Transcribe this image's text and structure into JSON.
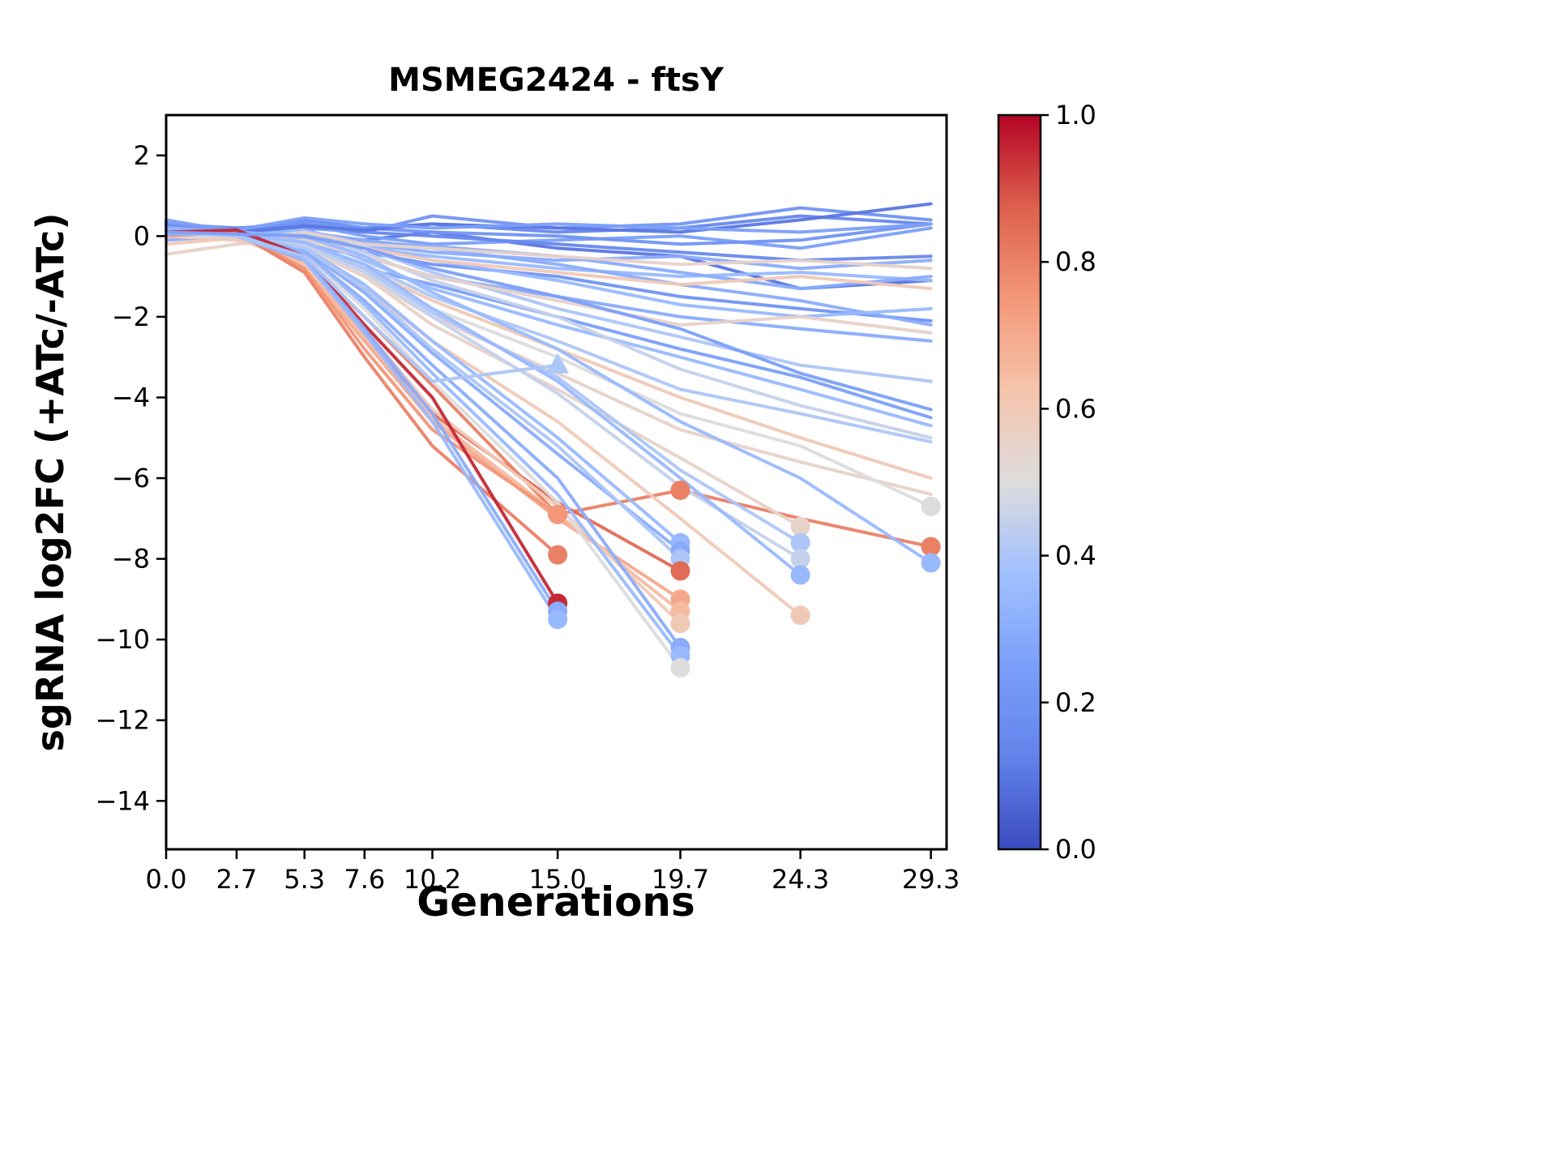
{
  "chart_data": {
    "type": "line",
    "title": "MSMEG2424 - ftsY",
    "xlabel": "Generations",
    "ylabel": "sgRNA log2FC (+ATc/-ATc)",
    "xlim": [
      0,
      29.9
    ],
    "ylim": [
      -15.2,
      3.0
    ],
    "x": [
      0.0,
      2.7,
      5.3,
      7.6,
      10.2,
      15.0,
      19.7,
      24.3,
      29.3
    ],
    "x_tick_labels": [
      "0.0",
      "2.7",
      "5.3",
      "7.6",
      "10.2",
      "15.0",
      "19.7",
      "24.3",
      "29.3"
    ],
    "y_ticks": [
      2,
      0,
      -2,
      -4,
      -6,
      -8,
      -10,
      -12,
      -14
    ],
    "y_tick_labels": [
      "2",
      "0",
      "−2",
      "−4",
      "−6",
      "−8",
      "−10",
      "−12",
      "−14"
    ],
    "colorbar": {
      "ticks": [
        0.0,
        0.2,
        0.4,
        0.6,
        0.8,
        1.0
      ],
      "tick_labels": [
        "0.0",
        "0.2",
        "0.4",
        "0.6",
        "0.8",
        "1.0"
      ]
    },
    "colormap_anchors": [
      [
        0.0,
        "#3b4cc0"
      ],
      [
        0.125,
        "#6282ea"
      ],
      [
        0.25,
        "#7b9ff9"
      ],
      [
        0.375,
        "#a1c0ff"
      ],
      [
        0.5,
        "#dddcdc"
      ],
      [
        0.625,
        "#f5c4ac"
      ],
      [
        0.75,
        "#f39778"
      ],
      [
        0.875,
        "#dd604d"
      ],
      [
        1.0,
        "#b40426"
      ]
    ],
    "series": [
      {
        "c": 0.15,
        "y": [
          0.3,
          0.1,
          0.4,
          0.2,
          0.3,
          0.1,
          0.2,
          0.5,
          0.3
        ]
      },
      {
        "c": 0.2,
        "y": [
          0.2,
          0.0,
          0.2,
          0.1,
          0.5,
          0.2,
          0.3,
          0.7,
          0.4
        ]
      },
      {
        "c": 0.1,
        "y": [
          0.1,
          0.2,
          0.0,
          -0.1,
          0.1,
          -0.3,
          -0.5,
          -1.3,
          -1.1
        ]
      },
      {
        "c": 0.25,
        "y": [
          0.4,
          0.1,
          0.3,
          0.0,
          -0.2,
          -0.1,
          0.0,
          -0.3,
          0.2
        ]
      },
      {
        "c": 0.3,
        "y": [
          0.2,
          -0.1,
          0.1,
          -0.2,
          -0.4,
          -0.6,
          -0.5,
          -0.8,
          -0.6
        ]
      },
      {
        "c": 0.35,
        "y": [
          0.0,
          0.1,
          -0.1,
          -0.3,
          -0.5,
          -0.8,
          -1.0,
          -0.9,
          -1.1
        ]
      },
      {
        "c": 0.2,
        "y": [
          0.1,
          0.0,
          0.2,
          -0.4,
          -0.7,
          -1.0,
          -1.5,
          -1.8,
          -2.1
        ]
      },
      {
        "c": 0.3,
        "y": [
          -0.1,
          0.0,
          -0.2,
          -0.5,
          -1.0,
          -1.5,
          -2.0,
          -2.3,
          -2.6
        ]
      },
      {
        "c": 0.25,
        "y": [
          0.0,
          0.05,
          -0.3,
          -0.8,
          -1.2,
          -2.0,
          -2.8,
          -3.5,
          -4.5
        ]
      },
      {
        "c": 0.35,
        "y": [
          0.2,
          0.1,
          0.0,
          -0.6,
          -1.3,
          -2.2,
          -3.0,
          -3.8,
          -4.7
        ]
      },
      {
        "c": 0.4,
        "y": [
          0.1,
          0.0,
          -0.2,
          -0.7,
          -1.5,
          -2.6,
          -3.8,
          -4.4,
          -5.1
        ]
      },
      {
        "c": 0.15,
        "y": [
          0.3,
          0.2,
          0.3,
          0.1,
          0.0,
          -0.2,
          -0.4,
          -0.6,
          -0.5
        ]
      },
      {
        "c": 0.3,
        "y": [
          0.15,
          0.05,
          0.1,
          -0.1,
          -0.3,
          -0.7,
          -1.2,
          -1.6,
          -2.2
        ]
      },
      {
        "c": 0.4,
        "y": [
          0.0,
          -0.1,
          0.05,
          -0.3,
          -0.9,
          -1.8,
          -2.5,
          -3.2,
          -3.6
        ]
      },
      {
        "c": 0.2,
        "y": [
          0.25,
          0.1,
          0.35,
          0.2,
          0.1,
          0.0,
          -0.2,
          -0.1,
          0.3
        ]
      },
      {
        "c": 0.35,
        "y": [
          0.1,
          0.0,
          0.15,
          -0.2,
          -0.6,
          -1.1,
          -1.7,
          -2.0,
          -1.8
        ]
      },
      {
        "c": 0.1,
        "y": [
          0.2,
          0.1,
          0.25,
          0.15,
          0.3,
          0.2,
          0.1,
          0.4,
          0.8
        ]
      },
      {
        "c": 0.3,
        "y": [
          0.0,
          0.1,
          -0.05,
          -0.15,
          -0.25,
          -0.5,
          -0.9,
          -1.3,
          -1.0
        ]
      },
      {
        "c": 0.45,
        "y": [
          0.1,
          0.05,
          0.0,
          -0.4,
          -1.1,
          -2.0,
          -3.3,
          -4.2,
          -5.0
        ]
      },
      {
        "c": 0.25,
        "y": [
          0.35,
          0.15,
          0.45,
          0.3,
          0.2,
          0.3,
          0.2,
          0.1,
          0.3
        ]
      },
      {
        "c": 0.55,
        "y": [
          0.0,
          -0.1,
          0.1,
          -0.2,
          -0.3,
          -0.5,
          -0.7,
          -0.6,
          -0.8
        ]
      },
      {
        "c": 0.6,
        "y": [
          -0.2,
          -0.05,
          0.0,
          -0.3,
          -0.6,
          -0.9,
          -1.2,
          -1.0,
          -1.3
        ]
      },
      {
        "c": 0.55,
        "y": [
          -0.45,
          -0.2,
          -0.1,
          -0.5,
          -1.0,
          -1.6,
          -2.2,
          -2.0,
          -2.4
        ]
      },
      {
        "c": 0.6,
        "y": [
          0.1,
          0.0,
          -0.2,
          -0.8,
          -1.6,
          -2.8,
          -4.0,
          -5.0,
          -6.0
        ]
      },
      {
        "c": 0.55,
        "y": [
          0.0,
          -0.1,
          -0.3,
          -1.0,
          -2.0,
          -3.4,
          -4.8,
          -5.6,
          -6.4
        ]
      },
      {
        "c": 0.5,
        "y": [
          0.05,
          0.0,
          -0.2,
          -0.9,
          -1.8,
          -3.0,
          -4.4,
          -5.2,
          -6.7
        ],
        "dots": [
          29.3
        ]
      },
      {
        "c": 0.8,
        "y": [
          0.1,
          0.05,
          -0.6,
          -2.0,
          -3.7,
          -6.9,
          -6.3,
          -7.0,
          -7.7
        ],
        "dots": [
          15.0,
          19.7,
          29.3
        ]
      },
      {
        "c": 0.35,
        "y": [
          0.2,
          0.1,
          0.0,
          -0.5,
          -1.4,
          -2.8,
          -4.6,
          -6.0,
          -8.1
        ],
        "dots": [
          29.3
        ]
      },
      {
        "c": 0.55,
        "y": [
          0.0,
          -0.05,
          -0.3,
          -1.0,
          -2.2,
          -3.8,
          -5.5,
          -7.2
        ],
        "dots": [
          24.3
        ]
      },
      {
        "c": 0.4,
        "y": [
          0.1,
          0.0,
          -0.2,
          -0.8,
          -1.9,
          -3.5,
          -5.8,
          -7.6
        ],
        "dots": [
          24.3
        ]
      },
      {
        "c": 0.45,
        "y": [
          0.05,
          0.0,
          -0.25,
          -0.9,
          -2.0,
          -3.9,
          -6.2,
          -8.0
        ],
        "dots": [
          24.3
        ]
      },
      {
        "c": 0.35,
        "y": [
          0.1,
          0.05,
          -0.15,
          -0.7,
          -1.8,
          -3.6,
          -6.0,
          -8.4
        ],
        "dots": [
          24.3
        ]
      },
      {
        "c": 0.6,
        "y": [
          0.0,
          -0.1,
          -0.4,
          -1.3,
          -2.6,
          -4.6,
          -7.0,
          -9.4
        ],
        "dots": [
          24.3
        ]
      },
      {
        "c": 0.35,
        "y": [
          0.1,
          0.0,
          -0.3,
          -1.2,
          -2.6,
          -5.0,
          -7.6
        ],
        "dots": [
          19.7
        ]
      },
      {
        "c": 0.3,
        "y": [
          0.05,
          0.0,
          -0.35,
          -1.4,
          -2.9,
          -5.4,
          -7.8
        ],
        "dots": [
          19.7
        ]
      },
      {
        "c": 0.4,
        "y": [
          0.0,
          -0.05,
          -0.3,
          -1.3,
          -2.8,
          -5.2,
          -8.0
        ],
        "dots": [
          19.7
        ]
      },
      {
        "c": 0.85,
        "y": [
          0.1,
          0.1,
          -0.7,
          -2.4,
          -4.4,
          -6.6,
          -8.3
        ],
        "dots": [
          19.7
        ]
      },
      {
        "c": 0.7,
        "y": [
          0.0,
          0.05,
          -0.8,
          -2.6,
          -4.6,
          -7.0,
          -9.0
        ],
        "dots": [
          19.7
        ]
      },
      {
        "c": 0.65,
        "y": [
          0.05,
          0.0,
          -0.75,
          -2.5,
          -4.5,
          -6.9,
          -9.3
        ],
        "dots": [
          19.7
        ]
      },
      {
        "c": 0.6,
        "y": [
          0.0,
          -0.05,
          -0.7,
          -2.3,
          -4.3,
          -6.7,
          -9.6
        ],
        "dots": [
          19.7
        ]
      },
      {
        "c": 0.3,
        "y": [
          0.1,
          0.05,
          -0.4,
          -1.6,
          -3.2,
          -6.0,
          -10.2
        ],
        "dots": [
          19.7
        ]
      },
      {
        "c": 0.35,
        "y": [
          0.05,
          0.0,
          -0.45,
          -1.7,
          -3.4,
          -6.4,
          -10.4
        ],
        "dots": [
          19.7
        ]
      },
      {
        "c": 0.5,
        "y": [
          0.0,
          0.0,
          -0.5,
          -1.8,
          -3.6,
          -6.6,
          -10.7
        ],
        "dots": [
          19.7
        ]
      },
      {
        "c": 0.75,
        "y": [
          0.0,
          0.1,
          -0.8,
          -2.8,
          -4.8,
          -6.9
        ],
        "dots": [
          15.0
        ]
      },
      {
        "c": 0.8,
        "y": [
          0.05,
          0.1,
          -0.9,
          -3.0,
          -5.2,
          -7.9
        ],
        "dots": [
          15.0
        ]
      },
      {
        "c": 0.95,
        "y": [
          0.1,
          0.15,
          -0.5,
          -2.2,
          -4.0,
          -9.1
        ],
        "dots": [
          15.0
        ]
      },
      {
        "c": 0.3,
        "y": [
          0.05,
          0.05,
          -0.55,
          -2.3,
          -4.4,
          -9.3
        ],
        "dots": [
          15.0
        ]
      },
      {
        "c": 0.35,
        "y": [
          0.1,
          0.0,
          -0.6,
          -2.4,
          -4.6,
          -9.5
        ],
        "dots": [
          15.0
        ]
      },
      {
        "c": 0.4,
        "y": [
          0.1,
          0.0,
          -0.5,
          -2.0,
          -3.6,
          -3.2
        ],
        "marker": "triangle",
        "dots": [
          15.0
        ]
      },
      {
        "c": 0.25,
        "y": [
          0.1,
          0.05,
          0.0,
          -0.3,
          -0.8,
          -1.5,
          -2.3,
          -3.4,
          -4.3
        ]
      }
    ]
  }
}
